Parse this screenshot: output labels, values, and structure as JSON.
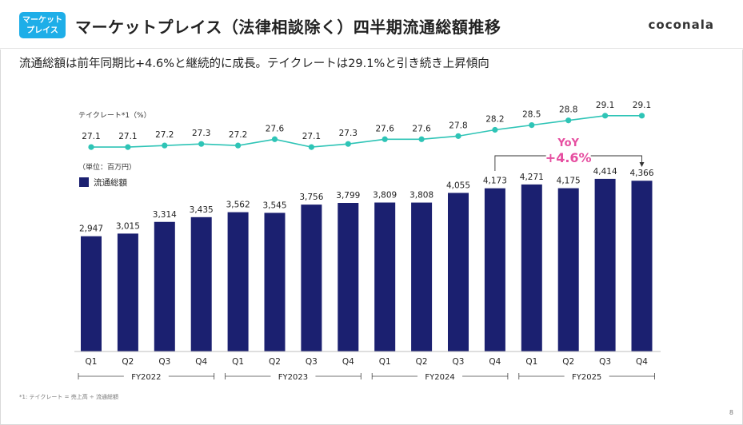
{
  "header": {
    "badge_line1": "マーケット",
    "badge_line2": "プレイス",
    "title": "マーケットプレイス（法律相談除く）四半期流通総額推移",
    "logo": "coconala"
  },
  "subtitle": "流通総額は前年同期比+4.6%と継続的に成長。テイクレートは29.1%と引き続き上昇傾向",
  "footnote": "*1: テイクレート = 売上高 ÷ 流通総額",
  "page_number": "8",
  "colors": {
    "bar": "#1b2070",
    "line": "#2ec4b6",
    "accent": "#e64ea0",
    "badge": "#1eaee8"
  },
  "chart_data": {
    "type": "bar",
    "categories": [
      "Q1",
      "Q2",
      "Q3",
      "Q4",
      "Q1",
      "Q2",
      "Q3",
      "Q4",
      "Q1",
      "Q2",
      "Q3",
      "Q4",
      "Q1",
      "Q2",
      "Q3",
      "Q4"
    ],
    "groups": [
      {
        "label": "FY2022",
        "start": 0,
        "end": 3
      },
      {
        "label": "FY2023",
        "start": 4,
        "end": 7
      },
      {
        "label": "FY2024",
        "start": 8,
        "end": 11
      },
      {
        "label": "FY2025",
        "start": 12,
        "end": 15
      }
    ],
    "series": [
      {
        "name": "流通総額",
        "type": "bar",
        "values": [
          2947,
          3015,
          3314,
          3435,
          3562,
          3545,
          3756,
          3799,
          3809,
          3808,
          4055,
          4173,
          4271,
          4175,
          4414,
          4366
        ],
        "labels": [
          "2,947",
          "3,015",
          "3,314",
          "3,435",
          "3,562",
          "3,545",
          "3,756",
          "3,799",
          "3,809",
          "3,808",
          "4,055",
          "4,173",
          "4,271",
          "4,175",
          "4,414",
          "4,366"
        ]
      },
      {
        "name": "テイクレート",
        "type": "line",
        "values": [
          27.1,
          27.1,
          27.2,
          27.3,
          27.2,
          27.6,
          27.1,
          27.3,
          27.6,
          27.6,
          27.8,
          28.2,
          28.5,
          28.8,
          29.1,
          29.1
        ],
        "labels": [
          "27.1",
          "27.1",
          "27.2",
          "27.3",
          "27.2",
          "27.6",
          "27.1",
          "27.3",
          "27.6",
          "27.6",
          "27.8",
          "28.2",
          "28.5",
          "28.8",
          "29.1",
          "29.1"
        ]
      }
    ],
    "line_label": "テイクレート*1（%）",
    "bar_unit_label": "（単位：百万円）",
    "legend_label": "流通総額",
    "legend_position": "top-left",
    "bar_ylim": [
      0,
      4800
    ],
    "line_ylim": [
      26.8,
      29.6
    ],
    "annotation": {
      "line1": "YoY",
      "line2": "+4.6%",
      "from_index": 11,
      "to_index": 15
    }
  }
}
